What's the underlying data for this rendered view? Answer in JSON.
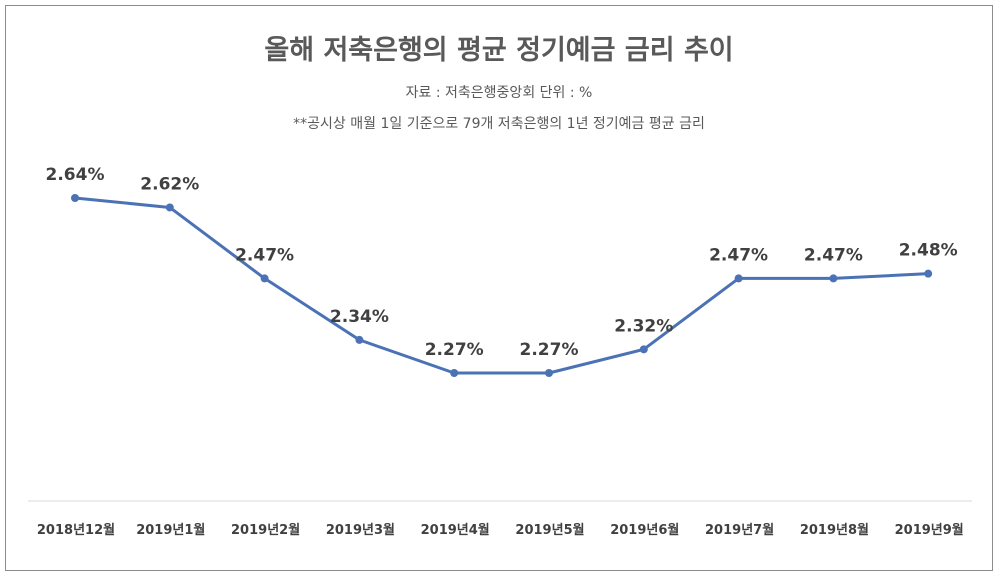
{
  "chart_data": {
    "type": "line",
    "title": "올해 저축은행의 평균 정기예금 금리 추이",
    "subtitle": "자료 : 저축은행중앙회 단위 : %",
    "note": "**공시상 매월 1일 기준으로 79개 저축은행의 1년 정기예금 평균 금리",
    "categories": [
      "2018년12월",
      "2019년1월",
      "2019년2월",
      "2019년3월",
      "2019년4월",
      "2019년5월",
      "2019년6월",
      "2019년7월",
      "2019년8월",
      "2019년9월"
    ],
    "values": [
      2.64,
      2.62,
      2.47,
      2.34,
      2.27,
      2.27,
      2.32,
      2.47,
      2.47,
      2.48
    ],
    "data_labels": [
      "2.64%",
      "2.62%",
      "2.47%",
      "2.34%",
      "2.27%",
      "2.27%",
      "2.32%",
      "2.47%",
      "2.47%",
      "2.48%"
    ],
    "line_color": "#4a72b5",
    "grid": false,
    "legend": "none",
    "ylim": [
      2.0,
      2.7
    ]
  }
}
